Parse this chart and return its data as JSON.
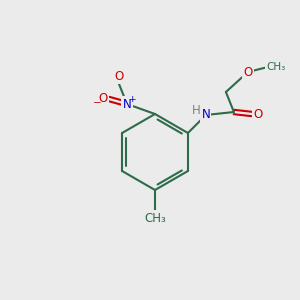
{
  "background_color": "#ebebeb",
  "figsize": [
    3.0,
    3.0
  ],
  "dpi": 100,
  "bond_color": "#2d6b4a",
  "bond_width": 1.5,
  "atom_colors": {
    "O": "#cc0000",
    "N": "#0000cc",
    "H": "#808080",
    "C": "#2d6b4a",
    "default": "#2d6b4a"
  },
  "font_size": 8.5
}
